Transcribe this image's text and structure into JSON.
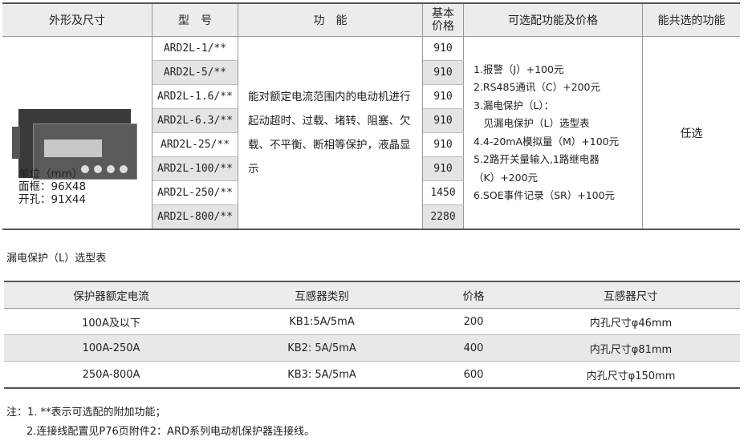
{
  "main_table": {
    "headers": [
      "外形及尺寸",
      "型　号",
      "功　能",
      "基本\n价格",
      "可选配功能及价格",
      "能共选的功能"
    ],
    "dimensions": {
      "unit": "单位（mm）",
      "frame": "面框：96X48",
      "cutout": "开孔：91X44"
    },
    "models": [
      "ARD2L-1/**",
      "ARD2L-5/**",
      "ARD2L-1.6/**",
      "ARD2L-6.3/**",
      "ARD2L-25/**",
      "ARD2L-100/**",
      "ARD2L-250/**",
      "ARD2L-800/**"
    ],
    "prices": [
      "910",
      "910",
      "910",
      "910",
      "910",
      "910",
      "1450",
      "2280"
    ],
    "function": "能对额定电流范围内的电动机进行起动超时、过载、堵转、阻塞、欠载、不平衡、断相等保护，液晶显示",
    "options": [
      "1.报警（J）+100元",
      "2.RS485通讯（C）+200元",
      "3.漏电保护（L）：",
      "　见漏电保护（L）选型表",
      "4.4-20mA模拟量（M）+100元",
      "5.2路开关量输入,1路继电器",
      "（K）+200元",
      "6.SOE事件记录（SR）+100元"
    ],
    "combinable": "任选"
  },
  "leak_table": {
    "title": "漏电保护（L）选型表",
    "headers": [
      "保护器额定电流",
      "互感器类别",
      "价格",
      "互感器尺寸"
    ],
    "rows": [
      [
        "100A及以下",
        "KB1:5A/5mA",
        "200",
        "内孔尺寸φ46mm"
      ],
      [
        "100A-250A",
        "KB2: 5A/5mA",
        "400",
        "内孔尺寸φ81mm"
      ],
      [
        "250A-800A",
        "KB3: 5A/5mA",
        "600",
        "内孔尺寸φ150mm"
      ]
    ]
  },
  "notes": [
    "注：1. **表示可选配的附加功能；",
    "2.连接线配置见P76页附件2：ARD系列电动机保护器连接线。"
  ]
}
